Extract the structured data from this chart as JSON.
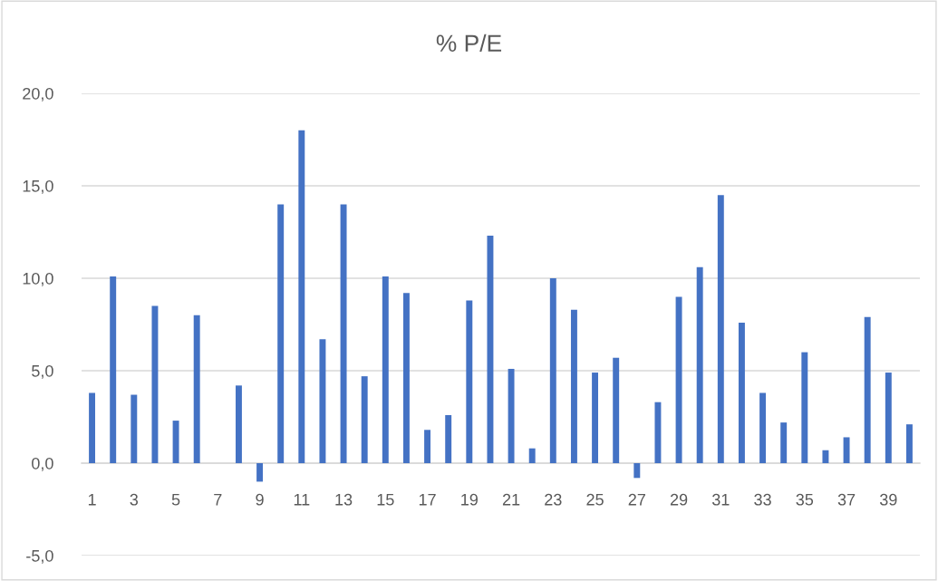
{
  "chart_data": {
    "type": "bar",
    "title": "% P/E",
    "categories": [
      "1",
      null,
      "3",
      null,
      "5",
      null,
      "7",
      null,
      "9",
      null,
      "11",
      null,
      "13",
      null,
      "15",
      null,
      "17",
      null,
      "19",
      null,
      "21",
      null,
      "23",
      null,
      "25",
      null,
      "27",
      null,
      "29",
      null,
      "31",
      null,
      "33",
      null,
      "35",
      null,
      "37",
      null,
      "39",
      null
    ],
    "values": [
      3.8,
      10.1,
      3.7,
      8.5,
      2.3,
      8.0,
      0,
      4.2,
      -1.0,
      14.0,
      18.0,
      6.7,
      14.0,
      4.7,
      10.1,
      9.2,
      1.8,
      2.6,
      8.8,
      12.3,
      5.1,
      0.8,
      10.0,
      8.3,
      4.9,
      5.7,
      -0.8,
      3.3,
      9.0,
      10.6,
      14.5,
      7.6,
      3.8,
      2.2,
      6.0,
      0.7,
      1.4,
      7.9,
      4.9,
      2.1
    ],
    "color": "#4472c4",
    "ylim": [
      -5,
      20
    ],
    "yticks": [
      {
        "value": -5,
        "label": "-5,0"
      },
      {
        "value": 0,
        "label": "0,0"
      },
      {
        "value": 5,
        "label": "5,0"
      },
      {
        "value": 10,
        "label": "10,0"
      },
      {
        "value": 15,
        "label": "15,0"
      },
      {
        "value": 20,
        "label": "20,0"
      }
    ],
    "grid": "y"
  }
}
